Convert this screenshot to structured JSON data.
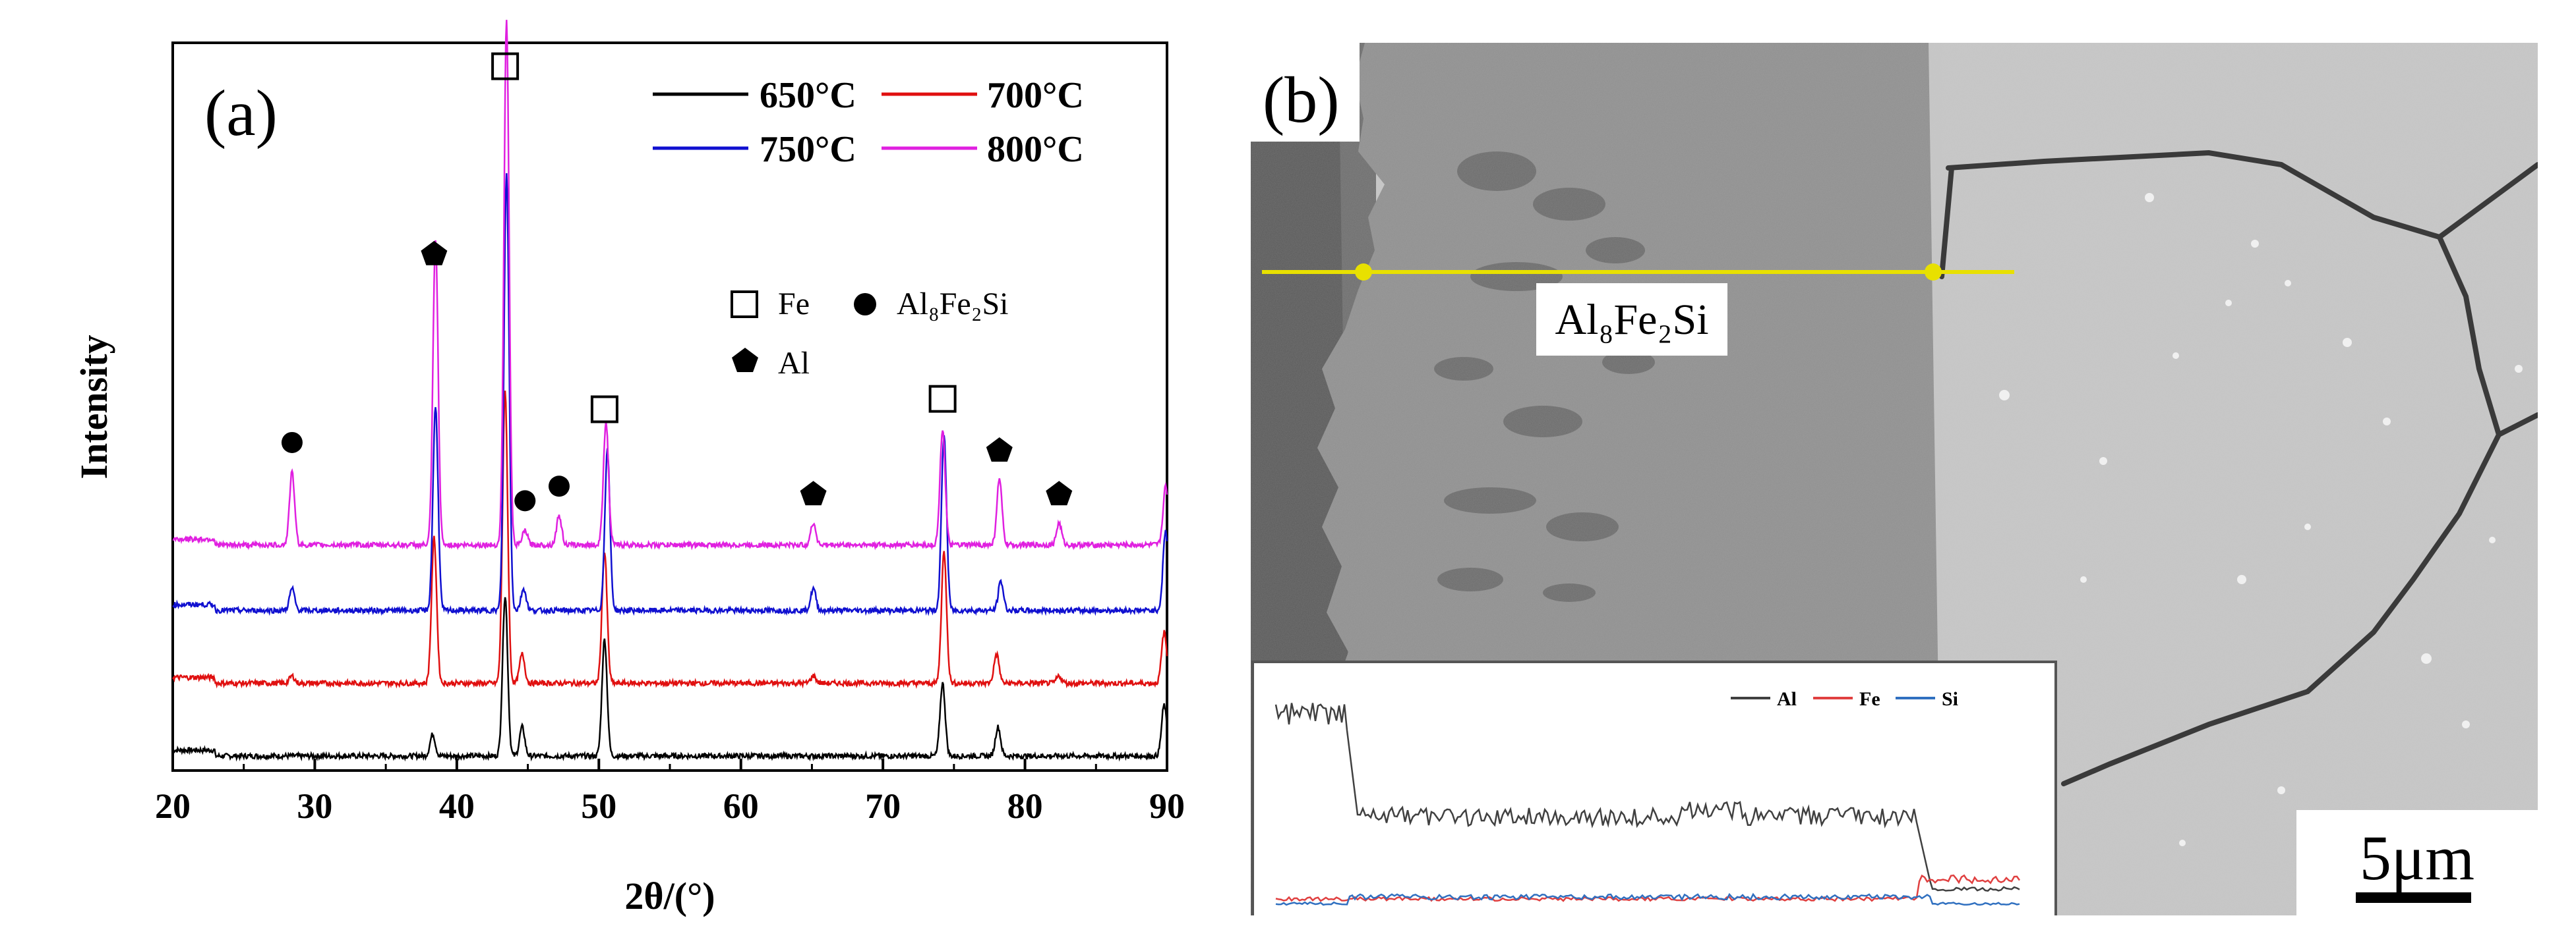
{
  "panel_a_label": "(a)",
  "panel_b_label": "(b)",
  "legend": {
    "s650": "650°C",
    "s700": "700°C",
    "s750": "750°C",
    "s800": "800°C"
  },
  "phase_legend": {
    "fe": "Fe",
    "al": "Al",
    "al8fe2si": "Al₈Fe₂Si"
  },
  "sem": {
    "phase_label": "Al₈Fe₂Si",
    "scale_bar": "5μm",
    "linescan_legend": [
      "Al",
      "Fe",
      "Si"
    ]
  },
  "colors": {
    "s650": "#000000",
    "s700": "#e01010",
    "s750": "#1010d0",
    "s800": "#e020e0",
    "scan_line": "#e8e000",
    "al_line": "#404040",
    "fe_line": "#e04040",
    "si_line": "#3070c0"
  },
  "chart_data": {
    "type": "line",
    "title": "",
    "xlabel": "2θ/(°)",
    "ylabel": "Intensity",
    "xlim": [
      20,
      90
    ],
    "xticks": [
      20,
      30,
      40,
      50,
      60,
      70,
      80,
      90
    ],
    "ylim": [
      0,
      100
    ],
    "series": [
      {
        "name": "650°C",
        "baseline": 2,
        "peaks": [
          [
            38.3,
            3
          ],
          [
            43.4,
            22
          ],
          [
            44.6,
            4
          ],
          [
            50.4,
            16
          ],
          [
            74.2,
            10
          ],
          [
            78.1,
            4
          ],
          [
            89.8,
            7
          ]
        ]
      },
      {
        "name": "700°C",
        "baseline": 12,
        "peaks": [
          [
            28.4,
            1
          ],
          [
            38.4,
            20
          ],
          [
            43.4,
            40
          ],
          [
            44.6,
            4
          ],
          [
            50.4,
            18
          ],
          [
            65.1,
            1
          ],
          [
            74.3,
            18
          ],
          [
            78.0,
            4
          ],
          [
            82.4,
            1
          ],
          [
            89.8,
            7
          ]
        ]
      },
      {
        "name": "750°C",
        "baseline": 22,
        "peaks": [
          [
            28.4,
            3
          ],
          [
            38.5,
            28
          ],
          [
            43.5,
            60
          ],
          [
            44.7,
            3
          ],
          [
            50.6,
            22
          ],
          [
            65.1,
            3
          ],
          [
            74.3,
            24
          ],
          [
            78.3,
            4
          ],
          [
            89.9,
            11
          ]
        ]
      },
      {
        "name": "800°C",
        "baseline": 31,
        "peaks": [
          [
            28.4,
            10
          ],
          [
            38.5,
            42
          ],
          [
            43.5,
            72
          ],
          [
            44.8,
            2
          ],
          [
            47.2,
            4
          ],
          [
            50.5,
            17
          ],
          [
            65.1,
            3
          ],
          [
            74.2,
            16
          ],
          [
            78.2,
            9
          ],
          [
            82.4,
            3
          ],
          [
            89.9,
            8
          ]
        ]
      }
    ],
    "phase_markers": [
      {
        "phase": "Fe",
        "x": 43.4
      },
      {
        "phase": "Fe",
        "x": 50.4
      },
      {
        "phase": "Fe",
        "x": 74.2
      },
      {
        "phase": "Al",
        "x": 38.4
      },
      {
        "phase": "Al",
        "x": 65.1
      },
      {
        "phase": "Al",
        "x": 78.2
      },
      {
        "phase": "Al",
        "x": 82.4
      },
      {
        "phase": "Al8Fe2Si",
        "x": 28.4
      },
      {
        "phase": "Al8Fe2Si",
        "x": 44.8
      },
      {
        "phase": "Al8Fe2Si",
        "x": 47.2
      }
    ]
  }
}
